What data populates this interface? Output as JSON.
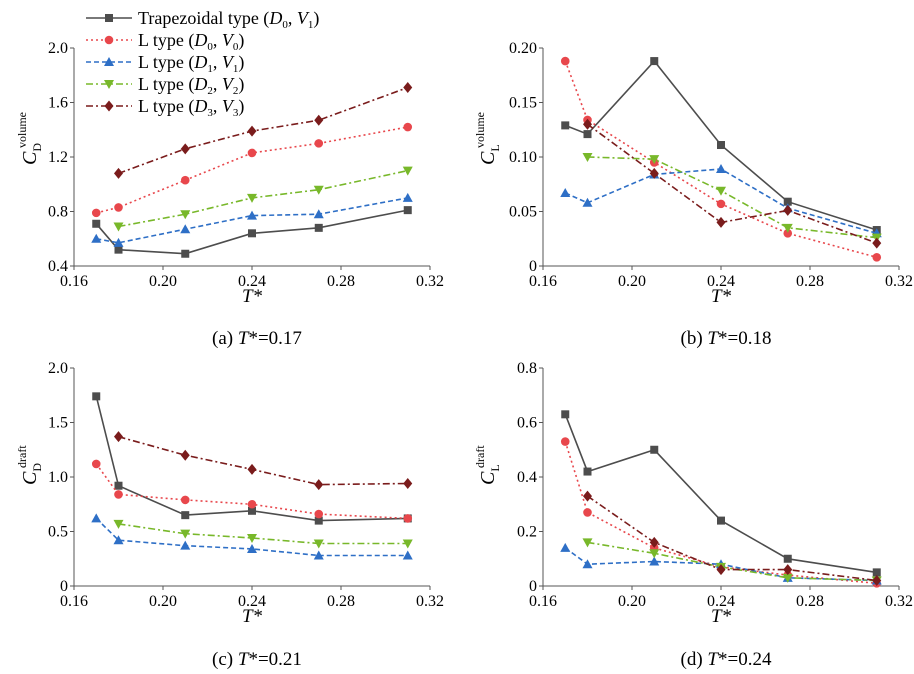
{
  "figure": {
    "legend": [
      {
        "name": "trapezoidal",
        "prefix": "Trapezoidal type (",
        "d": "D",
        "dsub": "0",
        "v": "V",
        "vsub": "1",
        "color": "#4d4d4d",
        "marker": "square",
        "dash": "solid"
      },
      {
        "name": "l-d0v0",
        "prefix": "L type (",
        "d": "D",
        "dsub": "0",
        "v": "V",
        "vsub": "0",
        "color": "#e8474c",
        "marker": "circle",
        "dash": "dotted"
      },
      {
        "name": "l-d1v1",
        "prefix": "L type (",
        "d": "D",
        "dsub": "1",
        "v": "V",
        "vsub": "1",
        "color": "#2e6fc6",
        "marker": "triangle-up",
        "dash": "dashed"
      },
      {
        "name": "l-d2v2",
        "prefix": "L type (",
        "d": "D",
        "dsub": "2",
        "v": "V",
        "vsub": "2",
        "color": "#78b82a",
        "marker": "triangle-down",
        "dash": "dashdot"
      },
      {
        "name": "l-d3v3",
        "prefix": "L type (",
        "d": "D",
        "dsub": "3",
        "v": "V",
        "vsub": "3",
        "color": "#7a1c1c",
        "marker": "diamond",
        "dash": "dashdot"
      }
    ]
  },
  "chart_data": [
    {
      "type": "line",
      "panel": "a",
      "caption": {
        "prefix": "(a) ",
        "var": "T",
        "rest": "*=0.17"
      },
      "xlabel": "T*",
      "ylabel": {
        "main": "C",
        "sub": "D",
        "sup": "volume"
      },
      "xlim": [
        0.16,
        0.32
      ],
      "xticks": [
        "0.16",
        "0.20",
        "0.24",
        "0.28",
        "0.32"
      ],
      "ylim": [
        0.4,
        2.0
      ],
      "yticks": [
        "0.4",
        "0.8",
        "1.2",
        "1.6",
        "2.0"
      ],
      "series": [
        {
          "name": "Trapezoidal type (D0, V1)",
          "x": [
            0.17,
            0.18,
            0.21,
            0.24,
            0.27,
            0.31
          ],
          "y": [
            0.71,
            0.52,
            0.49,
            0.64,
            0.68,
            0.81
          ]
        },
        {
          "name": "L type (D0, V0)",
          "x": [
            0.17,
            0.18,
            0.21,
            0.24,
            0.27,
            0.31
          ],
          "y": [
            0.79,
            0.83,
            1.03,
            1.23,
            1.3,
            1.42
          ]
        },
        {
          "name": "L type (D1, V1)",
          "x": [
            0.17,
            0.18,
            0.21,
            0.24,
            0.27,
            0.31
          ],
          "y": [
            0.6,
            0.57,
            0.67,
            0.77,
            0.78,
            0.9
          ]
        },
        {
          "name": "L type (D2, V2)",
          "x": [
            0.18,
            0.21,
            0.24,
            0.27,
            0.31
          ],
          "y": [
            0.69,
            0.78,
            0.9,
            0.96,
            1.1
          ]
        },
        {
          "name": "L type (D3, V3)",
          "x": [
            0.18,
            0.21,
            0.24,
            0.27,
            0.31
          ],
          "y": [
            1.08,
            1.26,
            1.39,
            1.47,
            1.71
          ]
        }
      ]
    },
    {
      "type": "line",
      "panel": "b",
      "caption": {
        "prefix": "(b) ",
        "var": "T",
        "rest": "*=0.18"
      },
      "xlabel": "T*",
      "ylabel": {
        "main": "C",
        "sub": "L",
        "sup": "volume"
      },
      "xlim": [
        0.16,
        0.32
      ],
      "xticks": [
        "0.16",
        "0.20",
        "0.24",
        "0.28",
        "0.32"
      ],
      "ylim": [
        0,
        0.2
      ],
      "yticks": [
        "0",
        "0.05",
        "0.10",
        "0.15",
        "0.20"
      ],
      "series": [
        {
          "name": "Trapezoidal type (D0, V1)",
          "x": [
            0.17,
            0.18,
            0.21,
            0.24,
            0.27,
            0.31
          ],
          "y": [
            0.129,
            0.121,
            0.188,
            0.111,
            0.059,
            0.033
          ]
        },
        {
          "name": "L type (D0, V0)",
          "x": [
            0.17,
            0.18,
            0.21,
            0.24,
            0.27,
            0.31
          ],
          "y": [
            0.188,
            0.134,
            0.095,
            0.057,
            0.03,
            0.008
          ]
        },
        {
          "name": "L type (D1, V1)",
          "x": [
            0.17,
            0.18,
            0.21,
            0.24,
            0.27,
            0.31
          ],
          "y": [
            0.067,
            0.058,
            0.084,
            0.089,
            0.053,
            0.03
          ]
        },
        {
          "name": "L type (D2, V2)",
          "x": [
            0.18,
            0.21,
            0.24,
            0.27,
            0.31
          ],
          "y": [
            0.1,
            0.098,
            0.069,
            0.035,
            0.026
          ]
        },
        {
          "name": "L type (D3, V3)",
          "x": [
            0.18,
            0.21,
            0.24,
            0.27,
            0.31
          ],
          "y": [
            0.13,
            0.085,
            0.04,
            0.051,
            0.021
          ]
        }
      ]
    },
    {
      "type": "line",
      "panel": "c",
      "caption": {
        "prefix": "(c) ",
        "var": "T",
        "rest": "*=0.21"
      },
      "xlabel": "T*",
      "ylabel": {
        "main": "C",
        "sub": "D",
        "sup": "draft"
      },
      "xlim": [
        0.16,
        0.32
      ],
      "xticks": [
        "0.16",
        "0.20",
        "0.24",
        "0.28",
        "0.32"
      ],
      "ylim": [
        0,
        2.0
      ],
      "yticks": [
        "0",
        "0.5",
        "1.0",
        "1.5",
        "2.0"
      ],
      "series": [
        {
          "name": "Trapezoidal type (D0, V1)",
          "x": [
            0.17,
            0.18,
            0.21,
            0.24,
            0.27,
            0.31
          ],
          "y": [
            1.74,
            0.92,
            0.65,
            0.69,
            0.6,
            0.62
          ]
        },
        {
          "name": "L type (D0, V0)",
          "x": [
            0.17,
            0.18,
            0.21,
            0.24,
            0.27,
            0.31
          ],
          "y": [
            1.12,
            0.84,
            0.79,
            0.75,
            0.66,
            0.62
          ]
        },
        {
          "name": "L type (D1, V1)",
          "x": [
            0.17,
            0.18,
            0.21,
            0.24,
            0.27,
            0.31
          ],
          "y": [
            0.62,
            0.42,
            0.37,
            0.34,
            0.28,
            0.28
          ]
        },
        {
          "name": "L type (D2, V2)",
          "x": [
            0.18,
            0.21,
            0.24,
            0.27,
            0.31
          ],
          "y": [
            0.57,
            0.48,
            0.44,
            0.39,
            0.39
          ]
        },
        {
          "name": "L type (D3, V3)",
          "x": [
            0.18,
            0.21,
            0.24,
            0.27,
            0.31
          ],
          "y": [
            1.37,
            1.2,
            1.07,
            0.93,
            0.94
          ]
        }
      ]
    },
    {
      "type": "line",
      "panel": "d",
      "caption": {
        "prefix": "(d) ",
        "var": "T",
        "rest": "*=0.24"
      },
      "xlabel": "T*",
      "ylabel": {
        "main": "C",
        "sub": "L",
        "sup": "draft"
      },
      "xlim": [
        0.16,
        0.32
      ],
      "xticks": [
        "0.16",
        "0.20",
        "0.24",
        "0.28",
        "0.32"
      ],
      "ylim": [
        0,
        0.8
      ],
      "yticks": [
        "0",
        "0.2",
        "0.4",
        "0.6",
        "0.8"
      ],
      "series": [
        {
          "name": "Trapezoidal type (D0, V1)",
          "x": [
            0.17,
            0.18,
            0.21,
            0.24,
            0.27,
            0.31
          ],
          "y": [
            0.63,
            0.42,
            0.5,
            0.24,
            0.1,
            0.05
          ]
        },
        {
          "name": "L type (D0, V0)",
          "x": [
            0.17,
            0.18,
            0.21,
            0.24,
            0.27,
            0.31
          ],
          "y": [
            0.53,
            0.27,
            0.14,
            0.07,
            0.04,
            0.01
          ]
        },
        {
          "name": "L type (D1, V1)",
          "x": [
            0.17,
            0.18,
            0.21,
            0.24,
            0.27,
            0.31
          ],
          "y": [
            0.14,
            0.08,
            0.09,
            0.08,
            0.03,
            0.02
          ]
        },
        {
          "name": "L type (D2, V2)",
          "x": [
            0.18,
            0.21,
            0.24,
            0.27,
            0.31
          ],
          "y": [
            0.16,
            0.12,
            0.07,
            0.03,
            0.02
          ]
        },
        {
          "name": "L type (D3, V3)",
          "x": [
            0.18,
            0.21,
            0.24,
            0.27,
            0.31
          ],
          "y": [
            0.33,
            0.16,
            0.06,
            0.06,
            0.02
          ]
        }
      ]
    }
  ]
}
